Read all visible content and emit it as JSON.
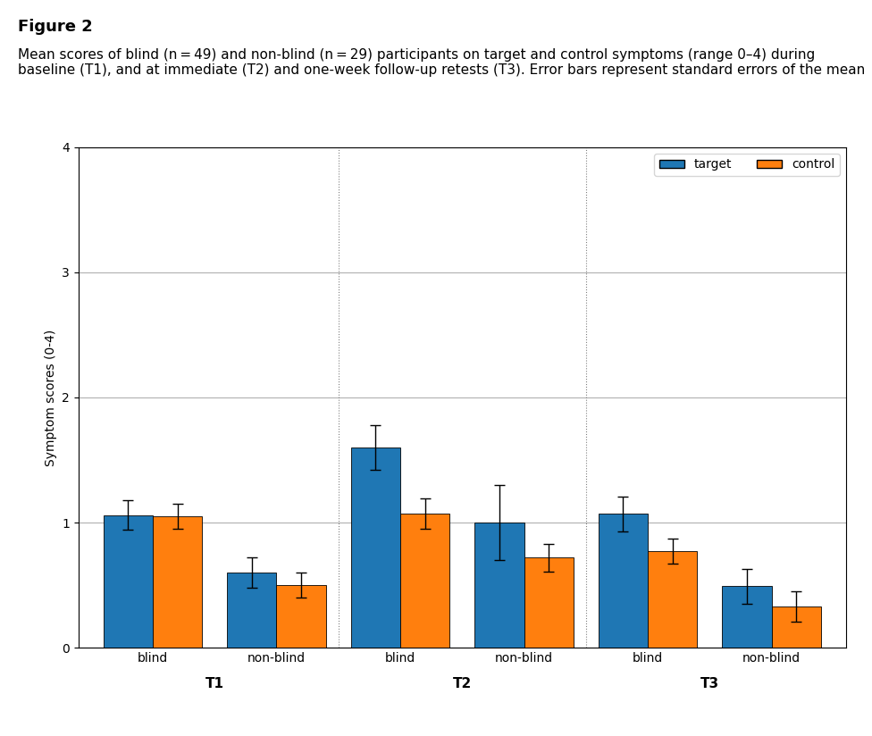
{
  "chart_data": {
    "type": "bar",
    "title": "Figure 2",
    "subtitle": "Mean scores of blind (n = 49) and non-blind (n = 29) participants on target and control symptoms (range 0–4) during baseline (T1), and at immediate (T2) and one-week follow-up retests (T3). Error bars represent standard errors of the mean",
    "y_label": "Symptom scores (0-4)",
    "categories": [
      "blind",
      "non-blind",
      "blind",
      "non-blind",
      "blind",
      "non-blind"
    ],
    "annotations": [
      "T1",
      "T2",
      "T3"
    ],
    "series": [
      {
        "name": "target",
        "values": [
          1.06,
          0.6,
          1.6,
          1.0,
          1.07,
          0.49
        ],
        "errors": [
          0.12,
          0.12,
          0.18,
          0.3,
          0.14,
          0.14
        ]
      },
      {
        "name": "control",
        "values": [
          1.05,
          0.5,
          1.07,
          0.72,
          0.77,
          0.33
        ],
        "errors": [
          0.1,
          0.1,
          0.12,
          0.11,
          0.1,
          0.12
        ]
      }
    ],
    "ylim": [
      0,
      4
    ],
    "yticks": [
      0,
      1,
      2,
      3,
      4
    ],
    "grid": true,
    "legend": "upper right"
  }
}
